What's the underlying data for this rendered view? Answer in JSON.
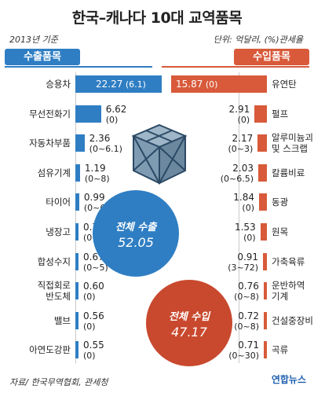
{
  "title": "한국–캐나다 10대 교역품목",
  "subtitle_left": "2013년 기준",
  "subtitle_right": "단위: 억달러, (%)관세율",
  "export_header": "수출품목",
  "import_header": "수입품목",
  "total_export": {
    "label": "전체 수출",
    "value": "52.05"
  },
  "total_import": {
    "label": "전체 수입",
    "value": "47.17"
  },
  "source": "자료/ 한국무역협회, 관세청",
  "logo": "연합뉴스",
  "chart_data": {
    "type": "bar",
    "title": "한국–캐나다 10대 교역품목",
    "unit": "억달러, (%)관세율",
    "exports": [
      {
        "item": "승용차",
        "value": 22.27,
        "value_label": "22.27",
        "tariff": "(6.1)"
      },
      {
        "item": "무선전화기",
        "value": 6.62,
        "value_label": "6.62",
        "tariff": "(0)"
      },
      {
        "item": "자동차부품",
        "value": 2.36,
        "value_label": "2.36",
        "tariff": "(0~6.1)"
      },
      {
        "item": "섬유기계",
        "value": 1.19,
        "value_label": "1.19",
        "tariff": "(0~8)"
      },
      {
        "item": "타이어",
        "value": 0.99,
        "value_label": "0.99",
        "tariff": "(0~6.5)"
      },
      {
        "item": "냉장고",
        "value": 0.7,
        "value_label": "0.70",
        "tariff": "(0~8)"
      },
      {
        "item": "합성수지",
        "value": 0.67,
        "value_label": "0.67",
        "tariff": "(0~5)"
      },
      {
        "item": "직접회로\n반도체",
        "value": 0.6,
        "value_label": "0.60",
        "tariff": "(0)"
      },
      {
        "item": "밸브",
        "value": 0.56,
        "value_label": "0.56",
        "tariff": "(0)"
      },
      {
        "item": "아연도강판",
        "value": 0.55,
        "value_label": "0.55",
        "tariff": "(0)"
      }
    ],
    "imports": [
      {
        "item": "유연탄",
        "value": 15.87,
        "value_label": "15.87",
        "tariff": "(0)"
      },
      {
        "item": "펄프",
        "value": 2.91,
        "value_label": "2.91",
        "tariff": "(0)"
      },
      {
        "item": "알루미늄괴\n및 스크랩",
        "value": 2.17,
        "value_label": "2.17",
        "tariff": "(0~3)"
      },
      {
        "item": "칼륨비료",
        "value": 2.03,
        "value_label": "2.03",
        "tariff": "(0~6.5)"
      },
      {
        "item": "동광",
        "value": 1.84,
        "value_label": "1.84",
        "tariff": "(0)"
      },
      {
        "item": "원목",
        "value": 1.53,
        "value_label": "1.53",
        "tariff": "(0)"
      },
      {
        "item": "가축육류",
        "value": 0.91,
        "value_label": "0.91",
        "tariff": "(3~72)"
      },
      {
        "item": "운반하역\n기계",
        "value": 0.76,
        "value_label": "0.76",
        "tariff": "(0~8)"
      },
      {
        "item": "건설중장비",
        "value": 0.72,
        "value_label": "0.72",
        "tariff": "(0~8)"
      },
      {
        "item": "곡류",
        "value": 0.71,
        "value_label": "0.71",
        "tariff": "(0~30)"
      }
    ],
    "colors": {
      "export": "#2f7ec3",
      "import": "#d85a3a"
    }
  }
}
